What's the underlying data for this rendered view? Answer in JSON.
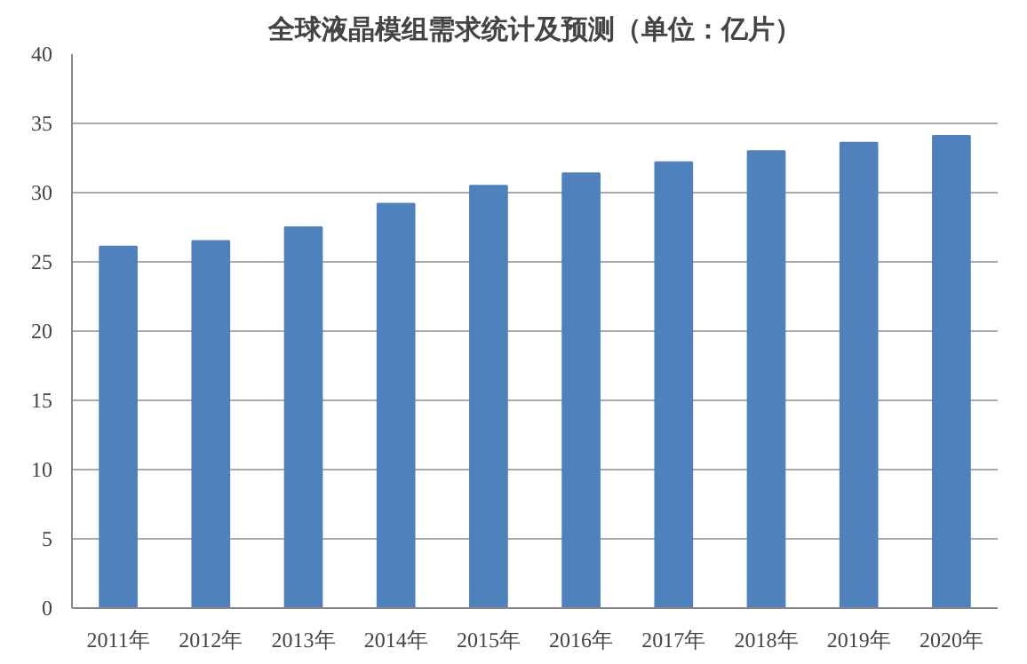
{
  "chart_data": {
    "type": "bar",
    "title": "全球液晶模组需求统计及预测（单位：亿片）",
    "categories": [
      "2011年",
      "2012年",
      "2013年",
      "2014年",
      "2015年",
      "2016年",
      "2017年",
      "2018年",
      "2019年",
      "2020年"
    ],
    "values": [
      26.1,
      26.5,
      27.5,
      29.2,
      30.5,
      31.4,
      32.2,
      33.0,
      33.6,
      34.1
    ],
    "color": "#4f81bd",
    "ylim": [
      0,
      40
    ],
    "yticks": [
      0,
      5,
      10,
      15,
      20,
      25,
      30,
      35,
      40
    ],
    "grid": "y"
  }
}
